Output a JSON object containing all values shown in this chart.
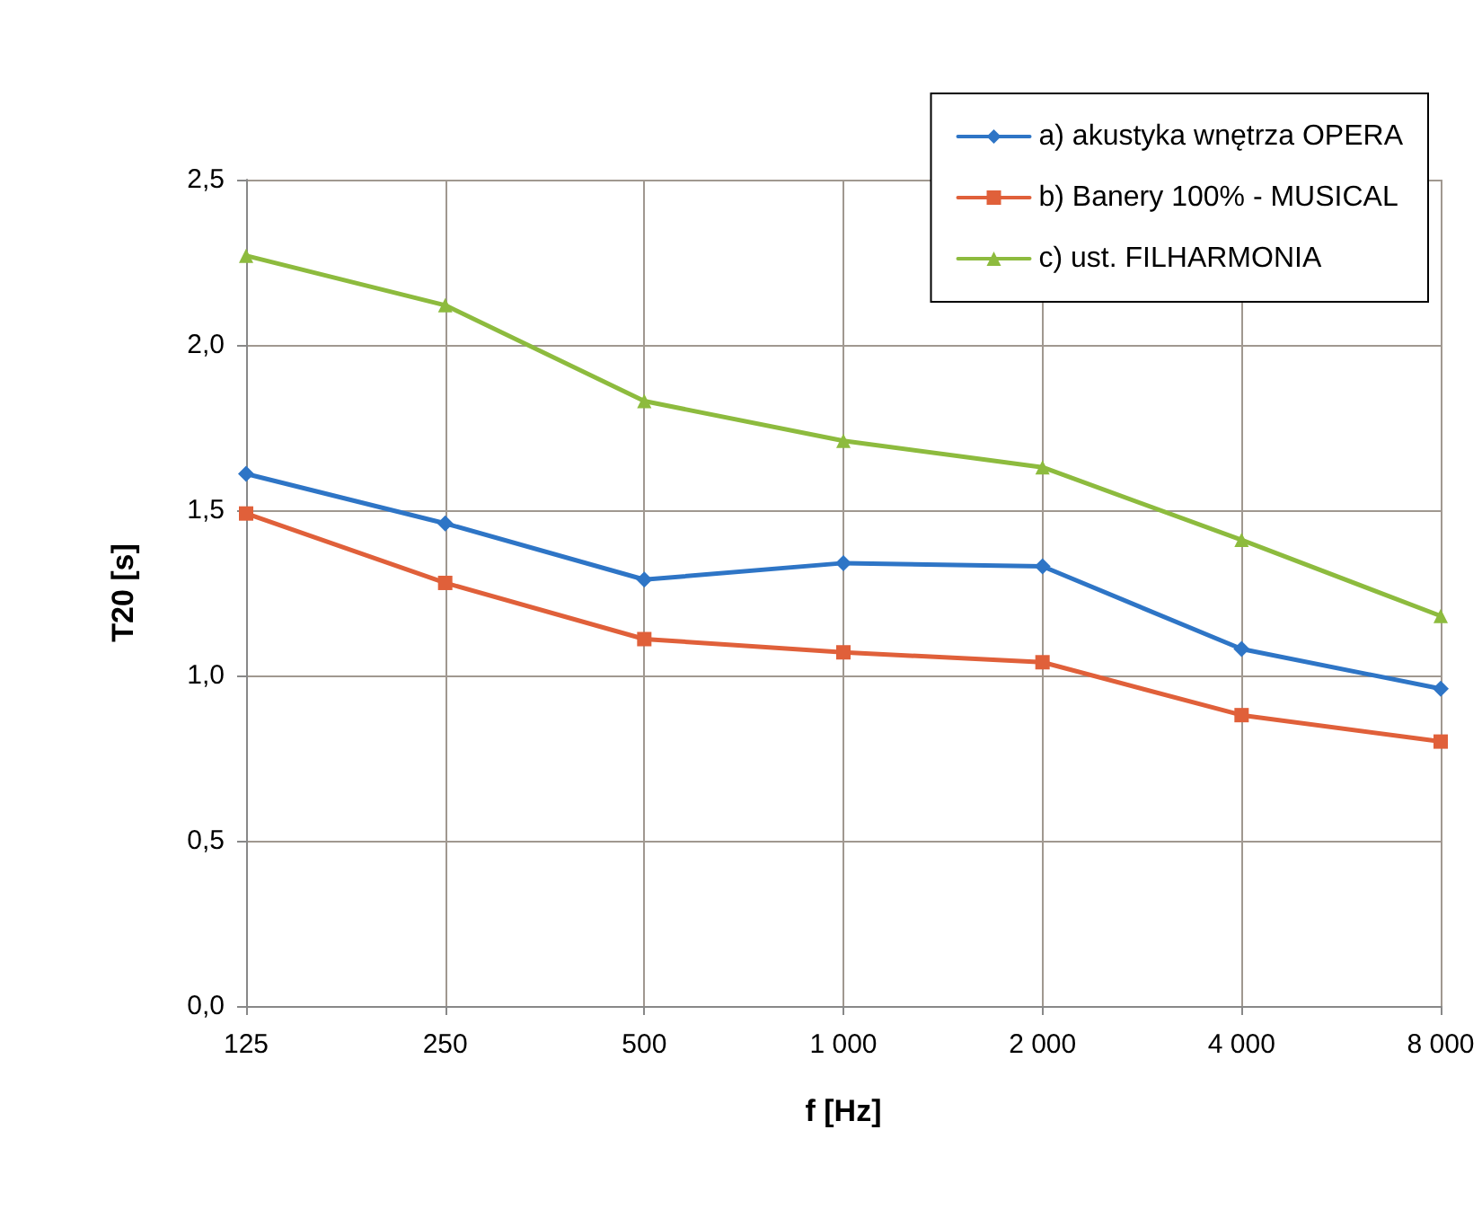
{
  "chart_data": {
    "type": "line",
    "xlabel": "f [Hz]",
    "ylabel": "T20 [s]",
    "categories": [
      "125",
      "250",
      "500",
      "1 000",
      "2 000",
      "4 000",
      "8 000"
    ],
    "series": [
      {
        "name": "a) akustyka wnętrza OPERA",
        "color": "#2e75c6",
        "marker": "diamond",
        "values": [
          1.61,
          1.46,
          1.29,
          1.34,
          1.33,
          1.08,
          0.96
        ]
      },
      {
        "name": "b) Banery 100% - MUSICAL",
        "color": "#e0603a",
        "marker": "square",
        "values": [
          1.49,
          1.28,
          1.11,
          1.07,
          1.04,
          0.88,
          0.8
        ]
      },
      {
        "name": "c) ust. FILHARMONIA",
        "color": "#8dbb3e",
        "marker": "triangle",
        "values": [
          2.27,
          2.12,
          1.83,
          1.71,
          1.63,
          1.41,
          1.18
        ]
      }
    ],
    "ylim": [
      0,
      2.5
    ],
    "yticks": [
      {
        "value": 0,
        "label": "0,0"
      },
      {
        "value": 0.5,
        "label": "0,5"
      },
      {
        "value": 1,
        "label": "1,0"
      },
      {
        "value": 1.5,
        "label": "1,5"
      },
      {
        "value": 2,
        "label": "2,0"
      },
      {
        "value": 2.5,
        "label": "2,5"
      }
    ],
    "grid": true,
    "legend": "top right",
    "line_style": "solid"
  }
}
